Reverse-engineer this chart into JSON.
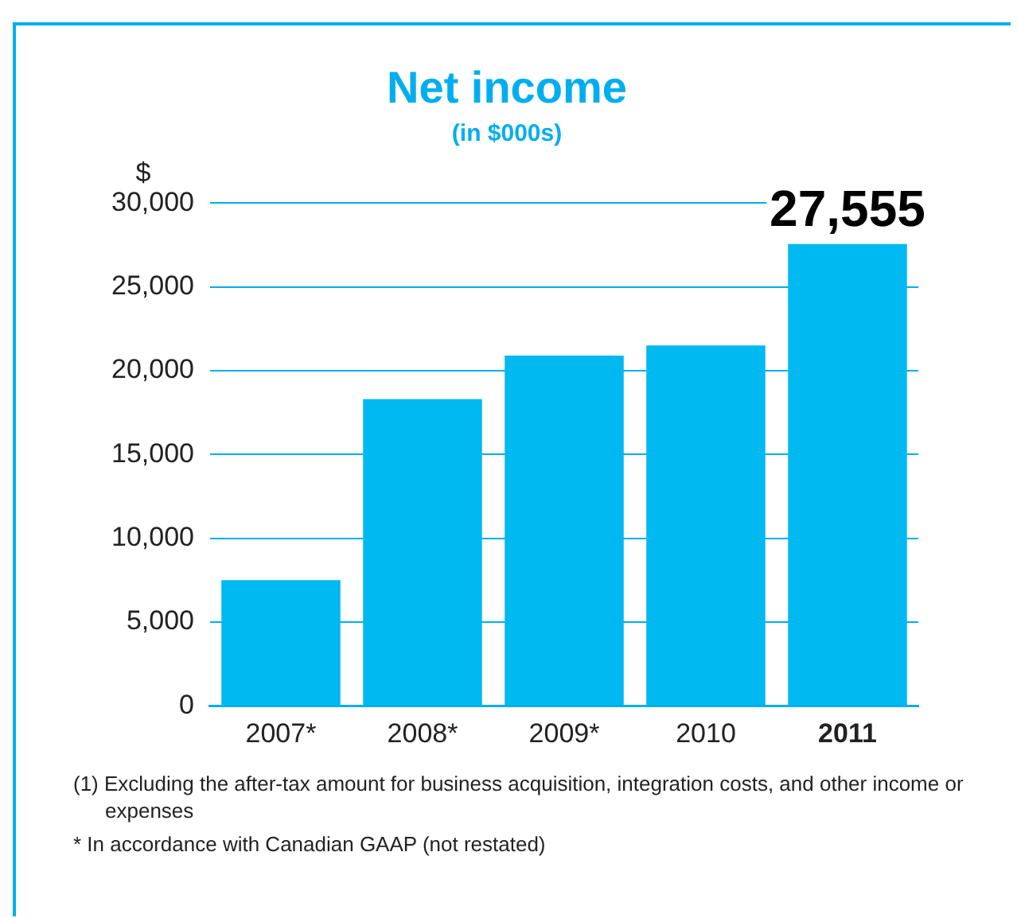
{
  "chart_data": {
    "type": "bar",
    "title": "Net income",
    "subtitle": "(in $000s)",
    "ylabel": "$",
    "categories": [
      "2007*",
      "2008*",
      "2009*",
      "2010",
      "2011"
    ],
    "values": [
      7500,
      18300,
      20900,
      21500,
      27555
    ],
    "value_labels": [
      null,
      null,
      null,
      null,
      "27,555"
    ],
    "color": "#00b9f1",
    "ylim": [
      0,
      30000
    ],
    "yticks": [
      0,
      {
        "value": 5000,
        "label": "5,000"
      },
      {
        "value": 10000,
        "label": "10,000"
      },
      {
        "value": 15000,
        "label": "15,000"
      },
      {
        "value": 20000,
        "label": "20,000"
      },
      {
        "value": 25000,
        "label": "25,000"
      },
      {
        "value": 30000,
        "label": "30,000"
      }
    ],
    "grid": "y",
    "legend": false,
    "annotations": [
      "(1) Excluding the after-tax amount for business acquisition, integration costs, and other income or expenses",
      "* In accordance with Canadian GAAP (not restated)"
    ]
  }
}
